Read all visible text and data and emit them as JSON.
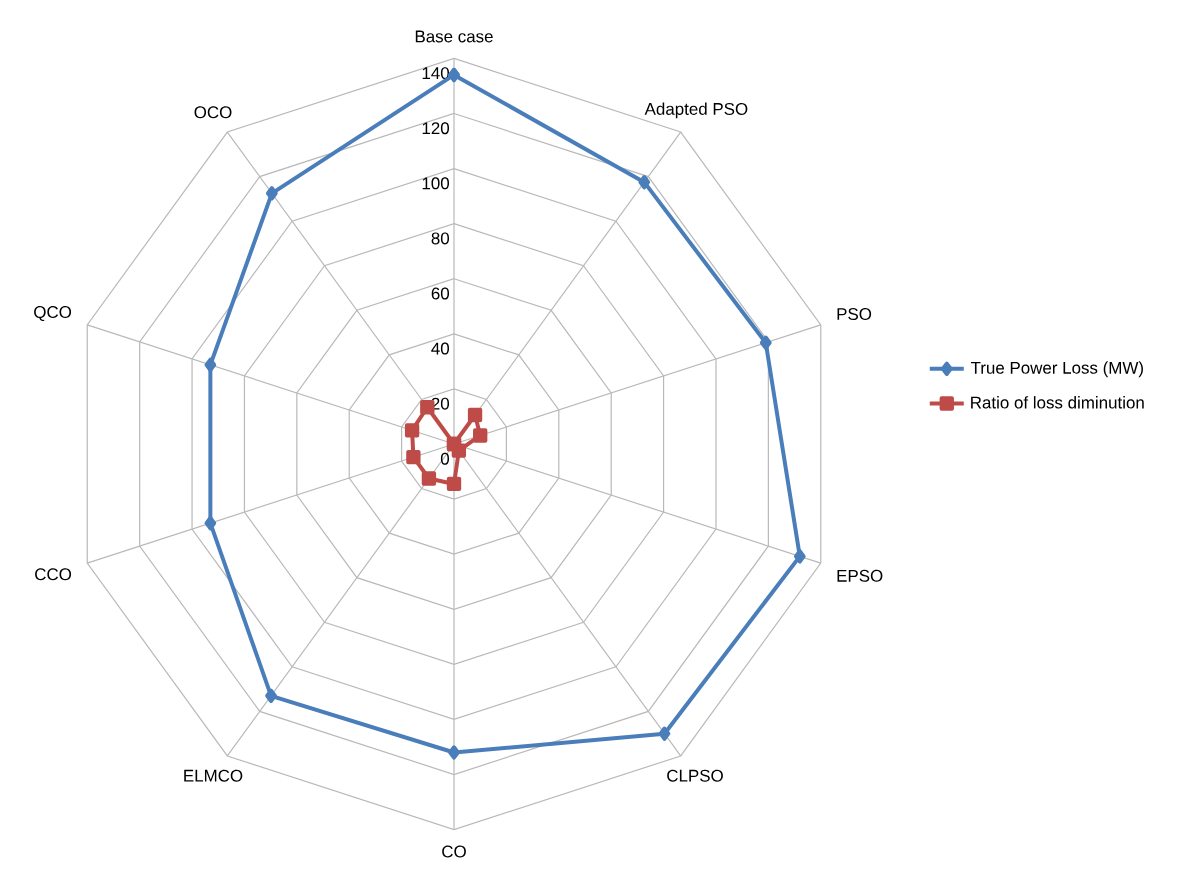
{
  "chart_data": {
    "type": "radar",
    "categories": [
      "Base case",
      "Adapted PSO",
      "PSO",
      "EPSO",
      "CLPSO",
      "CO",
      "ELMCO",
      "CCO",
      "QCO",
      "OCO"
    ],
    "series": [
      {
        "name": "True Power Loss (MW)",
        "color": "#4a7ebb",
        "marker": "diamond",
        "values": [
          134,
          117.5,
          119,
          132,
          130,
          112,
          113,
          93,
          93,
          112.5
        ]
      },
      {
        "name": "Ratio of loss diminution",
        "color": "#be4b48",
        "marker": "square",
        "values": [
          0,
          13,
          10,
          null,
          3,
          14.5,
          15.5,
          15.5,
          16,
          16.5
        ]
      }
    ],
    "ylim": [
      0,
      140
    ],
    "yticks": [
      0,
      20,
      40,
      60,
      80,
      100,
      120,
      140
    ],
    "grid": true,
    "legend": "right"
  }
}
